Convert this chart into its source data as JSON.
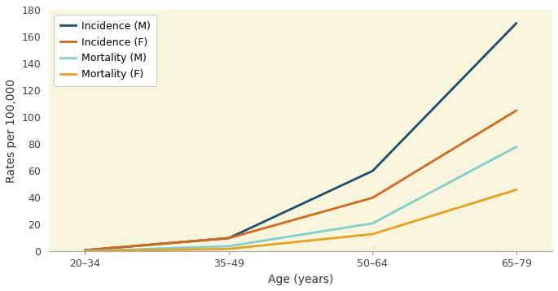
{
  "x_labels": [
    "20–34",
    "35–49",
    "50–64",
    "65–79"
  ],
  "x_positions": [
    0,
    1,
    2,
    3
  ],
  "series": [
    {
      "label": "Incidence (M)",
      "color": "#1c4e6e",
      "values": [
        1.0,
        10.0,
        60.0,
        170.0
      ]
    },
    {
      "label": "Incidence (F)",
      "color": "#d2691e",
      "values": [
        1.0,
        10.0,
        40.0,
        105.0
      ]
    },
    {
      "label": "Mortality (M)",
      "color": "#7fd0cc",
      "values": [
        0.3,
        4.0,
        21.0,
        78.0
      ]
    },
    {
      "label": "Mortality (F)",
      "color": "#e8a020",
      "values": [
        0.2,
        2.0,
        13.0,
        46.0
      ]
    }
  ],
  "ylim": [
    0,
    180
  ],
  "yticks": [
    0,
    20,
    40,
    60,
    80,
    100,
    120,
    140,
    160,
    180
  ],
  "ylabel": "Rates per 100,000",
  "xlabel": "Age (years)",
  "plot_bg_color": "#f8f5dc",
  "fig_bg_color": "#ffffff",
  "linewidth": 2.0,
  "legend_fontsize": 9,
  "axis_fontsize": 10,
  "tick_fontsize": 9
}
